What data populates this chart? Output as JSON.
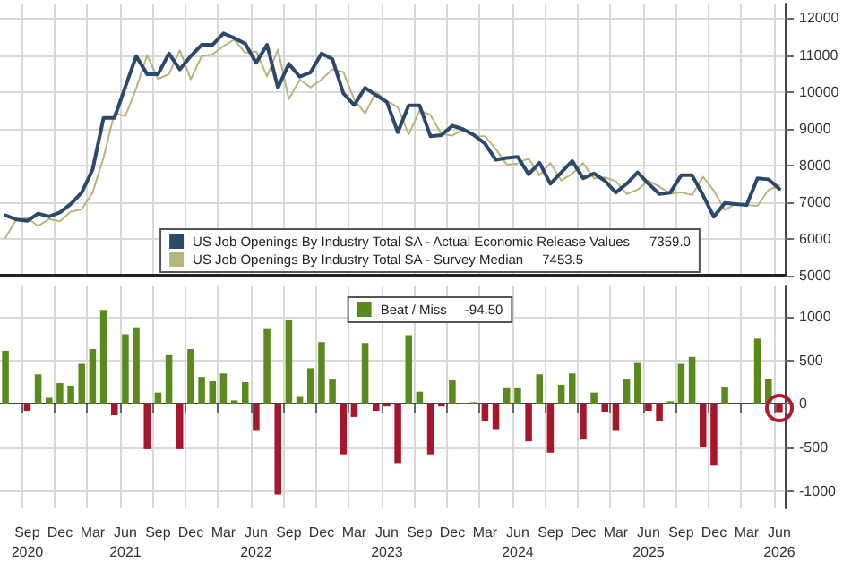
{
  "chart_data": [
    {
      "type": "line",
      "categories": [
        null,
        null,
        null,
        null,
        null,
        null,
        null,
        null,
        null,
        null,
        null,
        null,
        null,
        null,
        null,
        null,
        null,
        null,
        null,
        null,
        null,
        null,
        null,
        null,
        null,
        null,
        null,
        null,
        null,
        null,
        null,
        null,
        null,
        null,
        null,
        null,
        null,
        null,
        null,
        null,
        null,
        null,
        null,
        null,
        null,
        null,
        null,
        null,
        null,
        null,
        null,
        null,
        null,
        null,
        null,
        null,
        null,
        null,
        null,
        null,
        null,
        null,
        null,
        null,
        null,
        null,
        null,
        null,
        null,
        null,
        null,
        null
      ],
      "series": [
        {
          "name": "US Job Openings By Industry Total SA - Actual Economic Release Values",
          "color": "#2b4a6b",
          "values": [
            6640,
            6530,
            6490,
            6690,
            6610,
            6720,
            6950,
            7260,
            7890,
            9290,
            9290,
            10140,
            10970,
            10480,
            10480,
            11040,
            10610,
            10970,
            11280,
            11280,
            11590,
            11460,
            11310,
            10790,
            11280,
            10110,
            10760,
            10410,
            10530,
            11040,
            10890,
            9960,
            9640,
            10110,
            9910,
            9720,
            8900,
            9630,
            9630,
            8790,
            8820,
            9080,
            8980,
            8820,
            8590,
            8150,
            8200,
            8230,
            7760,
            8070,
            7500,
            7810,
            8120,
            7650,
            7780,
            7580,
            7260,
            7500,
            7810,
            7500,
            7220,
            7260,
            7730,
            7730,
            7190,
            6600,
            6980,
            6950,
            6920,
            7650,
            7620,
            7359
          ]
        },
        {
          "name": "US Job Openings By Industry Total SA - Survey Median",
          "color": "#b9b47c",
          "values": [
            6030,
            6530,
            6570,
            6350,
            6540,
            6480,
            6740,
            6800,
            7260,
            8210,
            9420,
            9340,
            10090,
            11000,
            10350,
            10480,
            11130,
            10340,
            10970,
            11020,
            11240,
            11420,
            11060,
            11100,
            10420,
            11150,
            9800,
            10330,
            10120,
            10330,
            10610,
            10540,
            9790,
            9410,
            9990,
            9750,
            9580,
            8840,
            9490,
            9370,
            8850,
            8810,
            8970,
            8800,
            8790,
            8440,
            8020,
            8050,
            8190,
            7730,
            8060,
            7590,
            7770,
            8060,
            7650,
            7670,
            7570,
            7220,
            7340,
            7580,
            7420,
            7230,
            7270,
            7190,
            7690,
            7310,
            6790,
            6950,
            6920,
            6900,
            7330,
            7453.5
          ]
        }
      ],
      "annotations": [
        "7359.0",
        "7453.5"
      ],
      "ylim": [
        5000,
        12400
      ],
      "yticks": [
        5000,
        6000,
        7000,
        8000,
        9000,
        10000,
        11000,
        12000
      ],
      "grid": true,
      "legend": "bottom",
      "tick_labels": "y"
    },
    {
      "type": "bar",
      "categories": [
        null,
        null,
        "Sep\n2020",
        null,
        null,
        "Dec",
        null,
        null,
        "Mar",
        null,
        null,
        "Jun\n2021",
        null,
        null,
        "Sep",
        null,
        null,
        "Dec",
        null,
        null,
        "Mar",
        null,
        null,
        "Jun\n2022",
        null,
        null,
        "Sep",
        null,
        null,
        "Dec",
        null,
        null,
        "Mar",
        null,
        null,
        "Jun\n2023",
        null,
        null,
        "Sep",
        null,
        null,
        "Dec",
        null,
        null,
        "Mar",
        null,
        null,
        "Jun\n2024",
        null,
        null,
        "Sep",
        null,
        null,
        "Dec",
        null,
        null,
        "Mar",
        null,
        null,
        "Jun\n2025",
        null,
        null,
        "Sep",
        null,
        null,
        "Dec",
        null,
        null,
        "Mar",
        null,
        null,
        "Jun\n2026"
      ],
      "series": [
        {
          "name": "Beat / Miss",
          "color": "#5a8a1e",
          "values": [
            610,
            0,
            -80,
            340,
            70,
            240,
            210,
            460,
            630,
            1080,
            -130,
            800,
            880,
            -520,
            130,
            560,
            -520,
            630,
            310,
            260,
            350,
            40,
            250,
            -310,
            860,
            -1040,
            960,
            80,
            410,
            710,
            280,
            -580,
            -150,
            700,
            -80,
            -30,
            -680,
            790,
            140,
            -580,
            -30,
            270,
            10,
            20,
            -200,
            -290,
            180,
            180,
            -430,
            340,
            -560,
            220,
            350,
            -410,
            130,
            -90,
            -310,
            280,
            470,
            -80,
            -200,
            30,
            460,
            540,
            -500,
            -710,
            190,
            0,
            0,
            750,
            290,
            -94.5
          ],
          "colors": [
            "#5a8a1e",
            "#5a8a1e",
            "#a8162c",
            "#5a8a1e",
            "#5a8a1e",
            "#5a8a1e",
            "#5a8a1e",
            "#5a8a1e",
            "#5a8a1e",
            "#5a8a1e",
            "#a8162c",
            "#5a8a1e",
            "#5a8a1e",
            "#a8162c",
            "#5a8a1e",
            "#5a8a1e",
            "#a8162c",
            "#5a8a1e",
            "#5a8a1e",
            "#5a8a1e",
            "#5a8a1e",
            "#5a8a1e",
            "#5a8a1e",
            "#a8162c",
            "#5a8a1e",
            "#a8162c",
            "#5a8a1e",
            "#5a8a1e",
            "#5a8a1e",
            "#5a8a1e",
            "#5a8a1e",
            "#a8162c",
            "#a8162c",
            "#5a8a1e",
            "#a8162c",
            "#a8162c",
            "#a8162c",
            "#5a8a1e",
            "#5a8a1e",
            "#a8162c",
            "#a8162c",
            "#5a8a1e",
            "#5a8a1e",
            "#5a8a1e",
            "#a8162c",
            "#a8162c",
            "#5a8a1e",
            "#5a8a1e",
            "#a8162c",
            "#5a8a1e",
            "#a8162c",
            "#5a8a1e",
            "#5a8a1e",
            "#a8162c",
            "#5a8a1e",
            "#a8162c",
            "#a8162c",
            "#5a8a1e",
            "#5a8a1e",
            "#a8162c",
            "#a8162c",
            "#5a8a1e",
            "#5a8a1e",
            "#5a8a1e",
            "#a8162c",
            "#a8162c",
            "#5a8a1e",
            "#5a8a1e",
            "#5a8a1e",
            "#5a8a1e",
            "#5a8a1e",
            "#a8162c"
          ]
        }
      ],
      "annotations": [
        "-94.50"
      ],
      "ylim": [
        -1200,
        1350
      ],
      "yticks": [
        -1000,
        -500,
        0,
        500,
        1000
      ],
      "grid": true,
      "legend": "top"
    }
  ]
}
